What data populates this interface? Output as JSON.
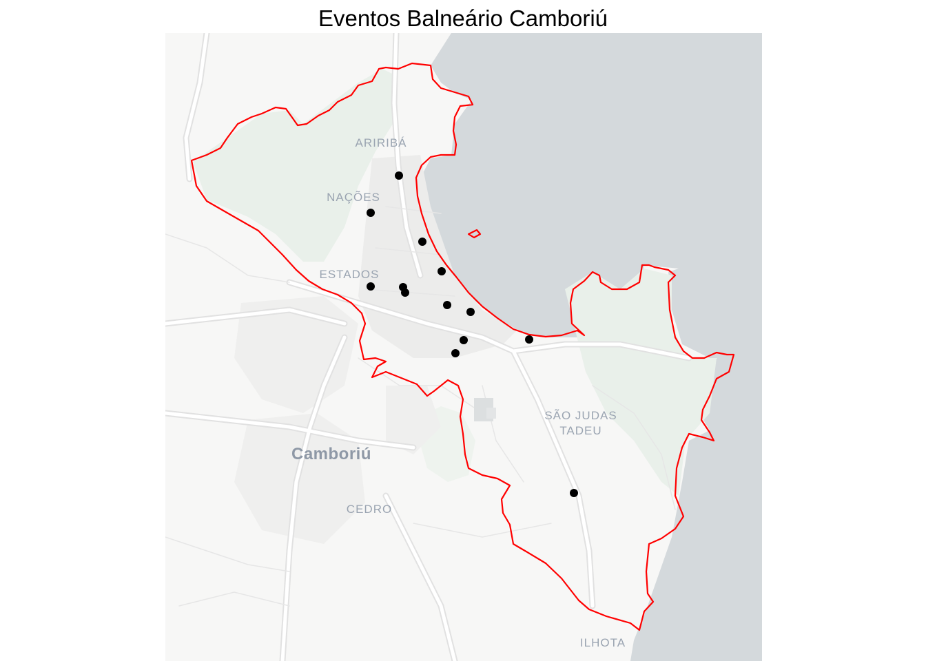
{
  "title": "Eventos Balneário Camboriú",
  "colors": {
    "land": "#f7f7f6",
    "water": "#d4d9dc",
    "park": "#e9f0ea",
    "road": "#ffffff",
    "road_casing": "#e3e3e3",
    "boundary": "#ff0000",
    "event_marker": "#000000"
  },
  "labels": {
    "aririba": "ARIRIBÁ",
    "nacoes": "NAÇÕES",
    "estados": "ESTADOS",
    "sao_judas_1": "SÃO JUDAS",
    "sao_judas_2": "TADEU",
    "camboriu": "Camboriú",
    "cedro": "CEDRO",
    "ilhota": "ILHOTA"
  },
  "events_count": 14
}
